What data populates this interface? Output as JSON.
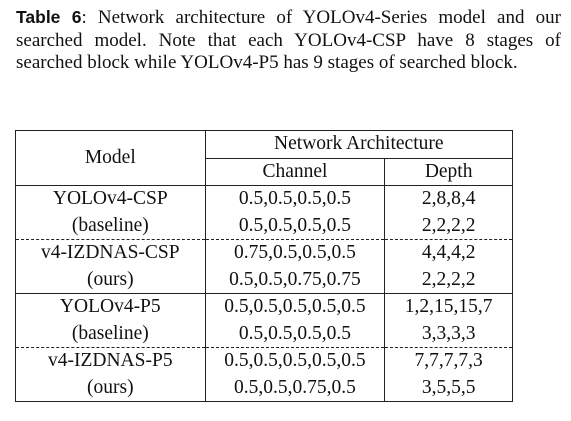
{
  "caption": {
    "label": "Table 6",
    "text": ": Network architecture of YOLOv4-Series model and our searched model.  Note that each YOLOv4-CSP have 8 stages of searched block while YOLOv4-P5 has 9 stages of searched block."
  },
  "table": {
    "header": {
      "model": "Model",
      "group": "Network Architecture",
      "channel": "Channel",
      "depth": "Depth"
    },
    "rows": [
      {
        "model": "YOLOv4-CSP",
        "channel": "0.5,0.5,0.5,0.5",
        "depth": "2,8,8,4"
      },
      {
        "model": "(baseline)",
        "channel": "0.5,0.5,0.5,0.5",
        "depth": "2,2,2,2"
      },
      {
        "model": "v4-IZDNAS-CSP",
        "channel": "0.75,0.5,0.5,0.5",
        "depth": "4,4,4,2"
      },
      {
        "model": "(ours)",
        "channel": "0.5,0.5,0.75,0.75",
        "depth": "2,2,2,2"
      },
      {
        "model": "YOLOv4-P5",
        "channel": "0.5,0.5,0.5,0.5,0.5",
        "depth": "1,2,15,15,7"
      },
      {
        "model": "(baseline)",
        "channel": "0.5,0.5,0.5,0.5",
        "depth": "3,3,3,3"
      },
      {
        "model": "v4-IZDNAS-P5",
        "channel": "0.5,0.5,0.5,0.5,0.5",
        "depth": "7,7,7,7,3"
      },
      {
        "model": "(ours)",
        "channel": "0.5,0.5,0.75,0.5",
        "depth": "3,5,5,5"
      }
    ]
  }
}
